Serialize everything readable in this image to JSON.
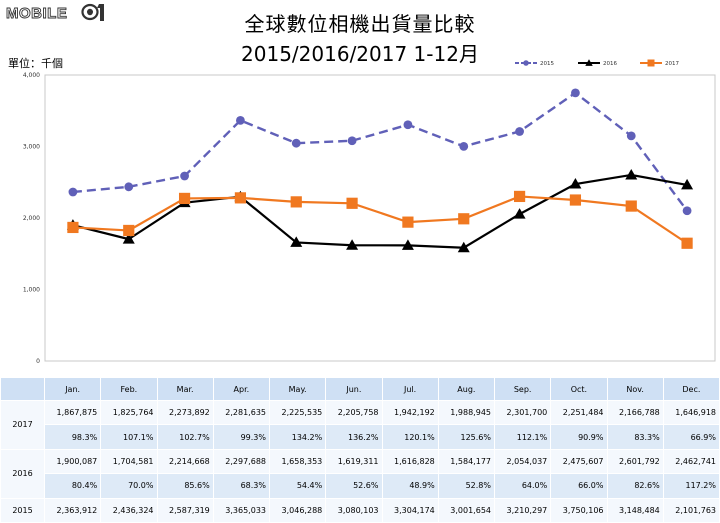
{
  "logo": {
    "text": "MOBILE01"
  },
  "title_line1": "全球數位相機出貨量比較",
  "title_line2": "2015/2016/2017 1-12月",
  "unit_label": "單位：千個",
  "colors": {
    "s2015": "#6060b8",
    "s2016": "#000000",
    "s2017": "#f07820",
    "header_bg": "#cfe0f4"
  },
  "chart_data": {
    "type": "line",
    "categories": [
      "Jan.",
      "Feb.",
      "Mar.",
      "Apr.",
      "May.",
      "Jun.",
      "Jul.",
      "Aug.",
      "Sep.",
      "Oct.",
      "Nov.",
      "Dec."
    ],
    "y_ticks": [
      "0",
      "1,000",
      "2,000",
      "3,000",
      "4,000"
    ],
    "ylim": [
      0,
      4000
    ],
    "grid": false,
    "legend_position": "top-right",
    "series": [
      {
        "name": "2015",
        "style": "dashed",
        "marker": "circle",
        "values": [
          2363.912,
          2436.324,
          2587.319,
          3365.033,
          3046.288,
          3080.103,
          3304.174,
          3001.654,
          3210.297,
          3750.106,
          3148.484,
          2101.763
        ]
      },
      {
        "name": "2016",
        "style": "solid",
        "marker": "triangle",
        "values": [
          1900.087,
          1704.581,
          2214.668,
          2297.688,
          1658.353,
          1619.311,
          1616.828,
          1584.177,
          2054.037,
          2475.607,
          2601.792,
          2462.741
        ]
      },
      {
        "name": "2017",
        "style": "solid",
        "marker": "square",
        "values": [
          1867.875,
          1825.764,
          2273.892,
          2281.635,
          2225.535,
          2205.758,
          1942.192,
          1988.945,
          2301.7,
          2251.484,
          2166.788,
          1646.918
        ]
      }
    ]
  },
  "table": {
    "headers": [
      "",
      "Jan.",
      "Feb.",
      "Mar.",
      "Apr.",
      "May.",
      "Jun.",
      "Jul.",
      "Aug.",
      "Sep.",
      "Oct.",
      "Nov.",
      "Dec."
    ],
    "rows": [
      {
        "year": "2017",
        "values": [
          "1,867,875",
          "1,825,764",
          "2,273,892",
          "2,281,635",
          "2,225,535",
          "2,205,758",
          "1,942,192",
          "1,988,945",
          "2,301,700",
          "2,251,484",
          "2,166,788",
          "1,646,918"
        ],
        "pct": [
          "98.3%",
          "107.1%",
          "102.7%",
          "99.3%",
          "134.2%",
          "136.2%",
          "120.1%",
          "125.6%",
          "112.1%",
          "90.9%",
          "83.3%",
          "66.9%"
        ]
      },
      {
        "year": "2016",
        "values": [
          "1,900,087",
          "1,704,581",
          "2,214,668",
          "2,297,688",
          "1,658,353",
          "1,619,311",
          "1,616,828",
          "1,584,177",
          "2,054,037",
          "2,475,607",
          "2,601,792",
          "2,462,741"
        ],
        "pct": [
          "80.4%",
          "70.0%",
          "85.6%",
          "68.3%",
          "54.4%",
          "52.6%",
          "48.9%",
          "52.8%",
          "64.0%",
          "66.0%",
          "82.6%",
          "117.2%"
        ]
      },
      {
        "year": "2015",
        "values": [
          "2,363,912",
          "2,436,324",
          "2,587,319",
          "3,365,033",
          "3,046,288",
          "3,080,103",
          "3,304,174",
          "3,001,654",
          "3,210,297",
          "3,750,106",
          "3,148,484",
          "2,101,763"
        ]
      }
    ]
  }
}
